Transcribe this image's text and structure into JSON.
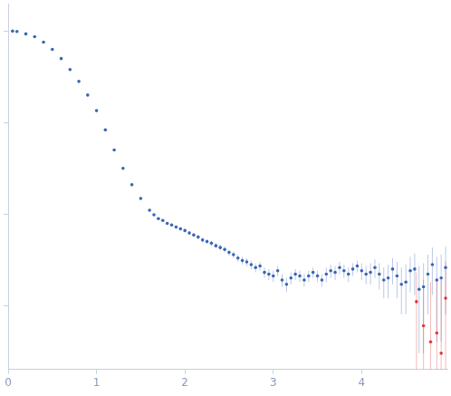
{
  "chart_data": {
    "type": "scatter",
    "log": "y",
    "grid": false,
    "tick_labels": "x",
    "xlim": [
      0,
      4.97
    ],
    "xticks": [
      0,
      1,
      2,
      3,
      4
    ],
    "ylim": [
      0.0002,
      2
    ],
    "yticks": [
      0.001,
      0.01,
      0.1,
      1
    ],
    "series": [
      {
        "color": "#3a66b5",
        "marker": "circle",
        "x": [
          0.05,
          0.1,
          0.2,
          0.3,
          0.4,
          0.5,
          0.6,
          0.7,
          0.8,
          0.9,
          1.0,
          1.1,
          1.2,
          1.3,
          1.4,
          1.5,
          1.6,
          1.65,
          1.7,
          1.75,
          1.8,
          1.85,
          1.9,
          1.95,
          2.0,
          2.05,
          2.1,
          2.15,
          2.2,
          2.25,
          2.3,
          2.35,
          2.4,
          2.45,
          2.5,
          2.55,
          2.6,
          2.65,
          2.7,
          2.75,
          2.8,
          2.85,
          2.9,
          2.95,
          3.0,
          3.05,
          3.1,
          3.15,
          3.2,
          3.25,
          3.3,
          3.35,
          3.4,
          3.45,
          3.5,
          3.55,
          3.6,
          3.65,
          3.7,
          3.75,
          3.8,
          3.85,
          3.9,
          3.95,
          4.0,
          4.05,
          4.1,
          4.15,
          4.2,
          4.25,
          4.3,
          4.35,
          4.4,
          4.45,
          4.5,
          4.55,
          4.6,
          4.65,
          4.7,
          4.75,
          4.8,
          4.85,
          4.9,
          4.95
        ],
        "values": [
          1.0,
          0.99,
          0.933,
          0.871,
          0.759,
          0.631,
          0.501,
          0.38,
          0.282,
          0.2,
          0.135,
          0.0832,
          0.0501,
          0.0316,
          0.0209,
          0.0148,
          0.011,
          0.0098,
          0.0089,
          0.0085,
          0.0079,
          0.0076,
          0.0072,
          0.0069,
          0.0066,
          0.0062,
          0.0059,
          0.0056,
          0.0052,
          0.005,
          0.0048,
          0.0045,
          0.0043,
          0.0041,
          0.0038,
          0.0036,
          0.0033,
          0.0031,
          0.003,
          0.0028,
          0.0026,
          0.0027,
          0.0023,
          0.0022,
          0.0021,
          0.0024,
          0.0019,
          0.0017,
          0.002,
          0.0022,
          0.0021,
          0.0019,
          0.0021,
          0.0023,
          0.0021,
          0.0019,
          0.0022,
          0.0024,
          0.0023,
          0.0026,
          0.0024,
          0.0022,
          0.0025,
          0.0027,
          0.0024,
          0.0022,
          0.0023,
          0.0026,
          0.0022,
          0.0019,
          0.002,
          0.0025,
          0.0021,
          0.0017,
          0.0018,
          0.0024,
          0.0025,
          0.0015,
          0.0016,
          0.0022,
          0.0028,
          0.0019,
          0.002,
          0.0026
        ],
        "errors": [
          0.005,
          0.005,
          0.004,
          0.004,
          0.003,
          0.003,
          0.002,
          0.002,
          0.0015,
          0.001,
          0.0008,
          0.0005,
          0.0003,
          0.0002,
          0.0002,
          0.0002,
          0.0003,
          0.0003,
          0.0003,
          0.0003,
          0.0003,
          0.0003,
          0.0003,
          0.0003,
          0.0003,
          0.0003,
          0.0003,
          0.0003,
          0.0003,
          0.0003,
          0.0003,
          0.0003,
          0.0003,
          0.0003,
          0.0003,
          0.0003,
          0.0003,
          0.0003,
          0.0003,
          0.0003,
          0.0003,
          0.0003,
          0.0003,
          0.0003,
          0.0003,
          0.0003,
          0.0003,
          0.0003,
          0.0003,
          0.0003,
          0.0003,
          0.0003,
          0.0003,
          0.0003,
          0.0003,
          0.0003,
          0.0004,
          0.0004,
          0.0004,
          0.0004,
          0.0004,
          0.0004,
          0.0004,
          0.0004,
          0.0005,
          0.0005,
          0.0006,
          0.0006,
          0.0007,
          0.0007,
          0.0008,
          0.0008,
          0.0009,
          0.0009,
          0.001,
          0.001,
          0.0012,
          0.0012,
          0.0013,
          0.0014,
          0.0015,
          0.0015,
          0.0016,
          0.0018
        ]
      },
      {
        "color": "#e0383a",
        "marker": "circle",
        "x": [
          4.62,
          4.7,
          4.78,
          4.85,
          4.9,
          4.95
        ],
        "values": [
          0.0011,
          0.0006,
          0.0004,
          0.0005,
          0.0003,
          0.0012
        ],
        "errors": [
          0.0012,
          0.0013,
          0.0014,
          0.0015,
          0.0016,
          0.0018
        ]
      }
    ]
  }
}
